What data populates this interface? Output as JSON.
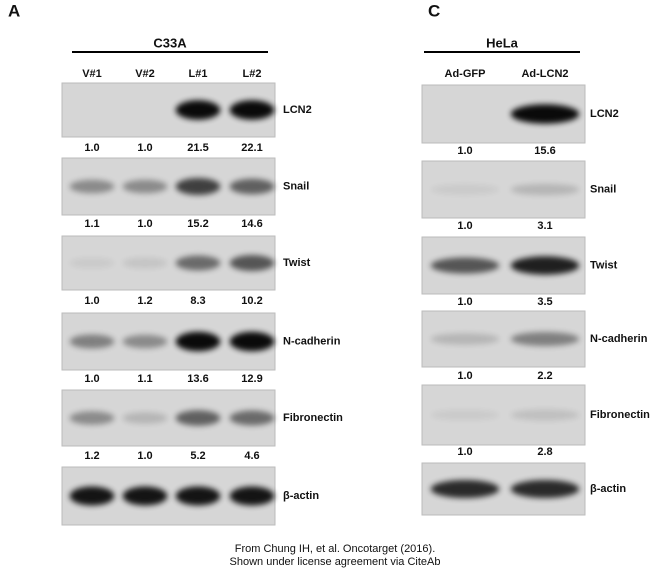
{
  "panels": [
    {
      "label": "A",
      "cell_line": "C33A",
      "lanes": [
        "V#1",
        "V#2",
        "L#1",
        "L#2"
      ],
      "blots": [
        {
          "protein": "LCN2",
          "values": [
            "1.0",
            "1.0",
            "21.5",
            "22.1"
          ]
        },
        {
          "protein": "Snail",
          "values": [
            "1.1",
            "1.0",
            "15.2",
            "14.6"
          ]
        },
        {
          "protein": "Twist",
          "values": [
            "1.0",
            "1.2",
            "8.3",
            "10.2"
          ]
        },
        {
          "protein": "N-cadherin",
          "values": [
            "1.0",
            "1.1",
            "13.6",
            "12.9"
          ]
        },
        {
          "protein": "Fibronectin",
          "values": [
            "1.2",
            "1.0",
            "5.2",
            "4.6"
          ]
        },
        {
          "protein": "β-actin"
        }
      ]
    },
    {
      "label": "C",
      "cell_line": "HeLa",
      "lanes": [
        "Ad-GFP",
        "Ad-LCN2"
      ],
      "blots": [
        {
          "protein": "LCN2",
          "values": [
            "1.0",
            "15.6"
          ]
        },
        {
          "protein": "Snail",
          "values": [
            "1.0",
            "3.1"
          ]
        },
        {
          "protein": "Twist",
          "values": [
            "1.0",
            "3.5"
          ]
        },
        {
          "protein": "N-cadherin",
          "values": [
            "1.0",
            "2.2"
          ]
        },
        {
          "protein": "Fibronectin",
          "values": [
            "1.0",
            "2.8"
          ]
        },
        {
          "protein": "β-actin"
        }
      ]
    }
  ],
  "credit": [
    "From Chung IH, et al. Oncotarget (2016).",
    "Shown under license agreement via CiteAb"
  ]
}
